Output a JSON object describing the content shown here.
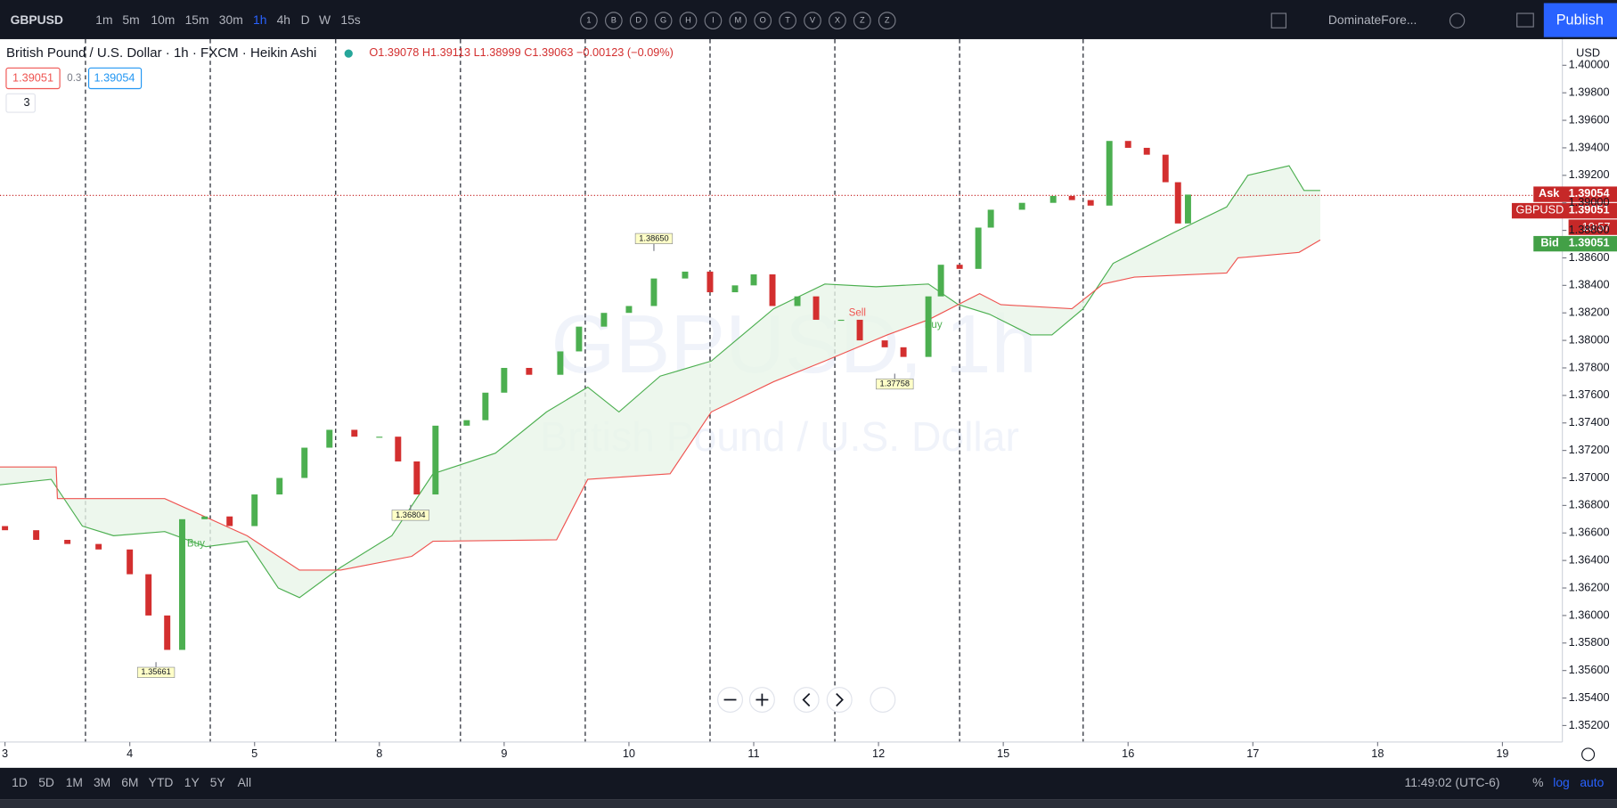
{
  "toolbar": {
    "symbol": "GBPUSD",
    "intervals": [
      "1m",
      "5m",
      "10m",
      "15m",
      "30m",
      "1h",
      "4h",
      "D",
      "W",
      "15s"
    ],
    "active_interval": 5,
    "drawing_tools": [
      "1",
      "B",
      "D",
      "G",
      "H",
      "I",
      "M",
      "O",
      "T",
      "V",
      "X",
      "Z",
      "Z"
    ],
    "layout_name": "DominateFore...",
    "publish": "Publish"
  },
  "legend": {
    "title": "British Pound / U.S. Dollar · 1h · FXCM · Heikin Ashi",
    "open": "O1.39078",
    "high": "H1.39113",
    "low": "L1.38999",
    "close": "C1.39063",
    "change": "−0.00123 (−0.09%)",
    "bid": "1.39051",
    "spread": "0.3",
    "ask": "1.39054",
    "indicators_count": "3"
  },
  "chart_data": {
    "type": "candlestick",
    "watermark": "GBPUSD, 1h",
    "watermark_subtitle": "British Pound / U.S. Dollar",
    "x": [
      0,
      0.25,
      0.5,
      0.75,
      1,
      1.15,
      1.3,
      1.42,
      1.6,
      1.8,
      2,
      2.2,
      2.4,
      2.6,
      2.8,
      3,
      3.15,
      3.3,
      3.45,
      3.7,
      3.85,
      4,
      4.2,
      4.45,
      4.6,
      4.8,
      5,
      5.2,
      5.45,
      5.65,
      5.85,
      6,
      6.15,
      6.35,
      6.5,
      6.7,
      6.85,
      7.05,
      7.2,
      7.4,
      7.5,
      7.65,
      7.8,
      7.9,
      8.15,
      8.4,
      8.55,
      8.7,
      8.85,
      9,
      9.15,
      9.3,
      9.4,
      9.48
    ],
    "open": [
      1.3665,
      1.3662,
      1.3655,
      1.3652,
      1.3648,
      1.363,
      1.36,
      1.3575,
      1.367,
      1.3672,
      1.3665,
      1.3688,
      1.37,
      1.3722,
      1.3735,
      1.373,
      1.373,
      1.3712,
      1.3688,
      1.3738,
      1.3742,
      1.3762,
      1.378,
      1.3775,
      1.3792,
      1.381,
      1.382,
      1.3825,
      1.3845,
      1.385,
      1.3835,
      1.384,
      1.3848,
      1.3825,
      1.3832,
      1.3815,
      1.3815,
      1.38,
      1.3795,
      1.3788,
      1.3832,
      1.3855,
      1.3852,
      1.3882,
      1.3895,
      1.39,
      1.3905,
      1.3902,
      1.3898,
      1.3945,
      1.394,
      1.3935,
      1.3915,
      1.3885
    ],
    "close": [
      1.3662,
      1.3655,
      1.3652,
      1.3648,
      1.363,
      1.36,
      1.3575,
      1.367,
      1.3672,
      1.3665,
      1.3688,
      1.37,
      1.3722,
      1.3735,
      1.373,
      1.373,
      1.3712,
      1.3688,
      1.3738,
      1.3742,
      1.3762,
      1.378,
      1.3775,
      1.3792,
      1.381,
      1.382,
      1.3825,
      1.3845,
      1.385,
      1.3835,
      1.384,
      1.3848,
      1.3825,
      1.3832,
      1.3815,
      1.3815,
      1.38,
      1.3795,
      1.3788,
      1.3832,
      1.3855,
      1.3852,
      1.3882,
      1.3895,
      1.39,
      1.3905,
      1.3902,
      1.3898,
      1.3945,
      1.394,
      1.3935,
      1.3915,
      1.3885,
      1.3906
    ],
    "up_color": "#4caf50",
    "down_color": "#d32f2f",
    "span_a": {
      "color": "#4caf50",
      "x": [
        -0.04,
        0.37,
        0.62,
        0.87,
        1.28,
        1.61,
        1.94,
        2.19,
        2.36,
        2.69,
        3.1,
        3.43,
        3.93,
        4.34,
        4.67,
        4.92,
        5.25,
        5.66,
        6.16,
        6.57,
        6.98,
        7.4,
        7.64,
        7.89,
        8.22,
        8.39,
        8.64,
        8.88,
        9.38,
        9.79,
        9.96,
        10.29,
        10.41,
        10.54
      ],
      "values": [
        1.3695,
        1.3699,
        1.3665,
        1.3658,
        1.3661,
        1.365,
        1.3654,
        1.362,
        1.3613,
        1.3635,
        1.3658,
        1.3703,
        1.3718,
        1.3748,
        1.3766,
        1.3748,
        1.3774,
        1.3785,
        1.3823,
        1.3841,
        1.3839,
        1.3841,
        1.3826,
        1.3819,
        1.3804,
        1.3804,
        1.3823,
        1.3856,
        1.3879,
        1.3897,
        1.392,
        1.3927,
        1.3909,
        1.3909
      ]
    },
    "span_b": {
      "color": "#ef5350",
      "x": [
        -0.04,
        0.41,
        0.42,
        1.28,
        1.94,
        2.36,
        2.69,
        3.26,
        3.43,
        4.42,
        4.67,
        5.33,
        5.66,
        6.16,
        6.57,
        7.07,
        7.4,
        7.81,
        7.98,
        8.55,
        8.8,
        9.05,
        9.79,
        9.88,
        10.37,
        10.54
      ],
      "values": [
        1.3708,
        1.3708,
        1.3685,
        1.3685,
        1.3658,
        1.3633,
        1.3633,
        1.3643,
        1.3654,
        1.3655,
        1.3699,
        1.3703,
        1.3748,
        1.377,
        1.3785,
        1.3804,
        1.3815,
        1.3834,
        1.3826,
        1.3823,
        1.3841,
        1.3846,
        1.3849,
        1.386,
        1.3864,
        1.3873
      ]
    },
    "cloud_color": "#e8f5e9",
    "session_breaks": [
      0.645,
      1.645,
      2.65,
      3.65,
      4.65,
      5.65,
      6.65,
      7.65,
      8.64
    ],
    "extremes": [
      {
        "x": 5.2,
        "value": 1.3865,
        "label": "1.38650"
      },
      {
        "x": 7.13,
        "value": 1.37758,
        "label": "1.37758"
      },
      {
        "x": 3.25,
        "value": 1.36804,
        "label": "1.36804"
      },
      {
        "x": 1.21,
        "value": 1.35661,
        "label": "1.35661"
      }
    ],
    "signals": [
      {
        "x": 6.83,
        "value": 1.382,
        "label": "Sell",
        "color": "#ef5350"
      },
      {
        "x": 7.44,
        "value": 1.3811,
        "label": "Buy",
        "color": "#4caf50"
      },
      {
        "x": 1.53,
        "value": 1.3652,
        "label": "Buy",
        "color": "#4caf50"
      }
    ],
    "price_line": 1.39054,
    "xlim": [
      -0.04,
      12.48
    ],
    "ylim": [
      1.3508,
      1.4019
    ],
    "xticks": [
      {
        "value": 0,
        "label": "3"
      },
      {
        "value": 1,
        "label": "4"
      },
      {
        "value": 2,
        "label": "5"
      },
      {
        "value": 3,
        "label": "8"
      },
      {
        "value": 4,
        "label": "9"
      },
      {
        "value": 5,
        "label": "10"
      },
      {
        "value": 6,
        "label": "11"
      },
      {
        "value": 7,
        "label": "12"
      },
      {
        "value": 8,
        "label": "15"
      },
      {
        "value": 9,
        "label": "16"
      },
      {
        "value": 10,
        "label": "17"
      },
      {
        "value": 11,
        "label": "18"
      },
      {
        "value": 12,
        "label": "19"
      }
    ],
    "yticks": [
      {
        "value": 1.352,
        "label": "1.35200"
      },
      {
        "value": 1.354,
        "label": "1.35400"
      },
      {
        "value": 1.356,
        "label": "1.35600"
      },
      {
        "value": 1.358,
        "label": "1.35800"
      },
      {
        "value": 1.36,
        "label": "1.36000"
      },
      {
        "value": 1.362,
        "label": "1.36200"
      },
      {
        "value": 1.364,
        "label": "1.36400"
      },
      {
        "value": 1.366,
        "label": "1.36600"
      },
      {
        "value": 1.368,
        "label": "1.36800"
      },
      {
        "value": 1.37,
        "label": "1.37000"
      },
      {
        "value": 1.372,
        "label": "1.37200"
      },
      {
        "value": 1.374,
        "label": "1.37400"
      },
      {
        "value": 1.376,
        "label": "1.37600"
      },
      {
        "value": 1.378,
        "label": "1.37800"
      },
      {
        "value": 1.38,
        "label": "1.38000"
      },
      {
        "value": 1.382,
        "label": "1.38200"
      },
      {
        "value": 1.384,
        "label": "1.38400"
      },
      {
        "value": 1.386,
        "label": "1.38600"
      },
      {
        "value": 1.388,
        "label": "1.38800"
      },
      {
        "value": 1.39,
        "label": "1.39000"
      },
      {
        "value": 1.392,
        "label": "1.39200"
      },
      {
        "value": 1.394,
        "label": "1.39400"
      },
      {
        "value": 1.396,
        "label": "1.39600"
      },
      {
        "value": 1.398,
        "label": "1.39800"
      },
      {
        "value": 1.4,
        "label": "1.40000"
      }
    ]
  },
  "price_axis": {
    "currency": "USD",
    "ask_tag": "Ask",
    "ask": "1.39054",
    "symbol_tag": "GBPUSD",
    "last": "1.39051",
    "countdown": "10:57",
    "bid_tag": "Bid",
    "bid": "1.39051"
  },
  "bottom_bar": {
    "ranges": [
      "1D",
      "5D",
      "1M",
      "3M",
      "6M",
      "YTD",
      "1Y",
      "5Y",
      "All"
    ],
    "clock": "11:49:02 (UTC-6)",
    "percent": "%",
    "log": "log",
    "auto": "auto"
  }
}
